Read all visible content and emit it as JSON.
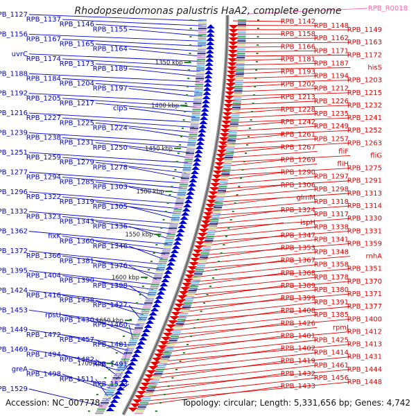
{
  "title": "Rhodopseudomonas palustris HaA2, complete genome",
  "footer": {
    "accession": "Accession: NC_007778",
    "topology": "Topology: circular; Length: 5,331,656 bp; Genes: 4,742"
  },
  "colors": {
    "reverse_strand": "#0000cc",
    "forward_strand": "#e00000",
    "rna_label": "#ff66aa",
    "backbone": "#888888",
    "tick": "#228822",
    "tick_label": "#222222"
  },
  "scale_ticks": [
    "1350 kbp",
    "1400 kbp",
    "1450 kbp",
    "1500 kbp",
    "1550 kbp",
    "1600 kbp",
    "1650 kbp",
    "1700 kbp"
  ],
  "rna_labels": [
    "RPB_R0018"
  ],
  "left_labels": [
    "RPB_1127",
    "RPB_1137",
    "RPB_1146",
    "RPB_1155",
    "RPB_1156",
    "RPB_1167",
    "RPB_1165",
    "RPB_1164",
    "uvrC",
    "RPB_1174",
    "RPB_1173",
    "RPB_1189",
    "RPB_1188",
    "RPB_1184",
    "RPB_1204",
    "RPB_1197",
    "RPB_1192",
    "RPB_1205",
    "RPB_1217",
    "clpS",
    "RPB_1216",
    "RPB_1227",
    "RPB_1225",
    "RPB_1224",
    "RPB_1239",
    "RPB_1238",
    "RPB_1231",
    "RPB_1250",
    "RPB_1251",
    "RPB_1259",
    "RPB_1279",
    "RPB_1278",
    "RPB_1277",
    "RPB_1294",
    "RPB_1285",
    "RPB_1303",
    "RPB_1296",
    "RPB_1322",
    "RPB_1319",
    "RPB_1305",
    "RPB_1332",
    "RPB_1323",
    "RPB_1343",
    "RPB_1336",
    "RPB_1362",
    "fixK",
    "RPB_1360",
    "RPB_1346",
    "RPB_1372",
    "RPB_1366",
    "RPB_1381",
    "RPB_1376",
    "RPB_1395",
    "RPB_1404",
    "RPB_1390",
    "RPB_1398",
    "RPB_1424",
    "RPB_1416",
    "RPB_1438",
    "RPB_1427",
    "RPB_1453",
    "rpsU",
    "RPB_1430",
    "RPB_1460",
    "RPB_1449",
    "RPB_1472",
    "RPB_1457",
    "RPB_1481",
    "RPB_1469",
    "RPB_1494",
    "RPB_1482",
    "RPB_1491",
    "greA",
    "RPB_1498",
    "RPB_1511",
    "RPB_1523",
    "RPB_1529"
  ],
  "right_labels": [
    "RPB_1142",
    "RPB_1148",
    "RPB_1149",
    "RPB_1158",
    "RPB_1162",
    "RPB_1163",
    "RPB_1166",
    "RPB_1171",
    "RPB_1172",
    "RPB_1181",
    "RPB_1187",
    "hisS",
    "RPB_1193",
    "RPB_1194",
    "RPB_1203",
    "RPB_1202",
    "RPB_1212",
    "RPB_1215",
    "RPB_1213",
    "RPB_1226",
    "RPB_1232",
    "RPB_1228",
    "RPB_1235",
    "RPB_1241",
    "RPB_1242",
    "RPB_1249",
    "RPB_1252",
    "RPB_1261",
    "RPB_1257",
    "RPB_1263",
    "RPB_1267",
    "fliF",
    "fliG",
    "RPB_1269",
    "fliH",
    "RPB_1275",
    "RPB_1290",
    "RPB_1297",
    "RPB_1291",
    "RPB_1306",
    "RPB_1298",
    "RPB_1313",
    "glmM",
    "RPB_1318",
    "RPB_1314",
    "RPB_1324",
    "RPB_1317",
    "RPB_1330",
    "ispH",
    "RPB_1338",
    "RPB_1331",
    "RPB_1347",
    "RPB_1341",
    "RPB_1359",
    "RPB_1353",
    "RPB_1348",
    "rnhA",
    "RPB_1367",
    "RPB_1358",
    "RPB_1351",
    "RPB_1368",
    "RPB_1378",
    "RPB_1370",
    "RPB_1389",
    "RPB_1380",
    "RPB_1371",
    "RPB_1399",
    "RPB_1391",
    "RPB_1377",
    "RPB_1408",
    "RPB_1385",
    "RPB_1400",
    "RPB_1426",
    "rpmJ",
    "RPB_1412",
    "RPB_1401",
    "RPB_1425",
    "RPB_1413",
    "RPB_1402",
    "RPB_1414",
    "RPB_1431",
    "RPB_1419",
    "RPB_1461",
    "RPB_1444",
    "RPB_1432",
    "RPB_1456",
    "RPB_1448",
    "RPB_1433"
  ]
}
